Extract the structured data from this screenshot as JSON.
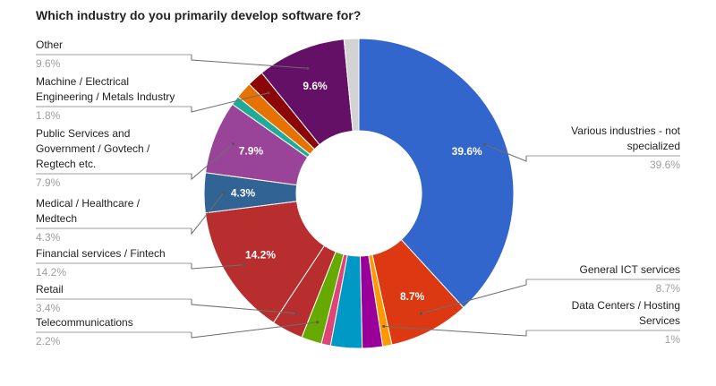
{
  "chart_data": {
    "type": "pie",
    "donut": true,
    "title": "Which industry do you primarily develop software for?",
    "categories": [
      "Various industries - not specialized",
      "General ICT services",
      "Data Centers / Hosting Services",
      "Unlabeled (purple)",
      "Unlabeled (cyan)",
      "Unlabeled (pink)",
      "Telecommunications",
      "Retail",
      "Financial services / Fintech",
      "Medical / Healthcare / Medtech",
      "Public Services and Government / Govtech / Regtech etc.",
      "Unlabeled (teal)",
      "Unlabeled (orange)",
      "Machine / Electrical Engineering / Metals Industry",
      "Other",
      "Unlabeled (light grey)"
    ],
    "values": [
      39.6,
      8.7,
      1,
      2.2,
      3.4,
      1,
      2.2,
      3.4,
      14.2,
      4.3,
      7.9,
      1,
      1.8,
      1.8,
      9.6,
      1.6
    ],
    "colors": [
      "#3366cc",
      "#dc3912",
      "#ff9900",
      "#990099",
      "#0099c6",
      "#dd4477",
      "#66aa00",
      "#b82e2e",
      "#b82e2e",
      "#316395",
      "#994499",
      "#22aa99",
      "#e67300",
      "#8b0707",
      "#651067",
      "#d3d3d3"
    ],
    "slice_labels": [
      "39.6%",
      "8.7%",
      "",
      "",
      "",
      "",
      "",
      "",
      "14.2%",
      "4.3%",
      "7.9%",
      "",
      "",
      "",
      "9.6%",
      ""
    ],
    "legend_placement": "callouts",
    "callouts": [
      {
        "index": 14,
        "side": "left",
        "lines": [
          "Other"
        ],
        "pct": "9.6%"
      },
      {
        "index": 13,
        "side": "left",
        "lines": [
          "Machine / Electrical",
          "Engineering / Metals Industry"
        ],
        "pct": "1.8%"
      },
      {
        "index": 10,
        "side": "left",
        "lines": [
          "Public Services and",
          "Government / Govtech /",
          "Regtech etc."
        ],
        "pct": "7.9%"
      },
      {
        "index": 9,
        "side": "left",
        "lines": [
          "Medical / Healthcare /",
          "Medtech"
        ],
        "pct": "4.3%"
      },
      {
        "index": 8,
        "side": "left",
        "lines": [
          "Financial services / Fintech"
        ],
        "pct": "14.2%"
      },
      {
        "index": 7,
        "side": "left",
        "lines": [
          "Retail"
        ],
        "pct": "3.4%"
      },
      {
        "index": 6,
        "side": "left",
        "lines": [
          "Telecommunications"
        ],
        "pct": "2.2%"
      },
      {
        "index": 0,
        "side": "right",
        "lines": [
          "Various industries - not",
          "specialized"
        ],
        "pct": "39.6%"
      },
      {
        "index": 1,
        "side": "right",
        "lines": [
          "General ICT services"
        ],
        "pct": "8.7%"
      },
      {
        "index": 2,
        "side": "right",
        "lines": [
          "Data Centers / Hosting",
          "Services"
        ],
        "pct": "1%"
      }
    ]
  }
}
